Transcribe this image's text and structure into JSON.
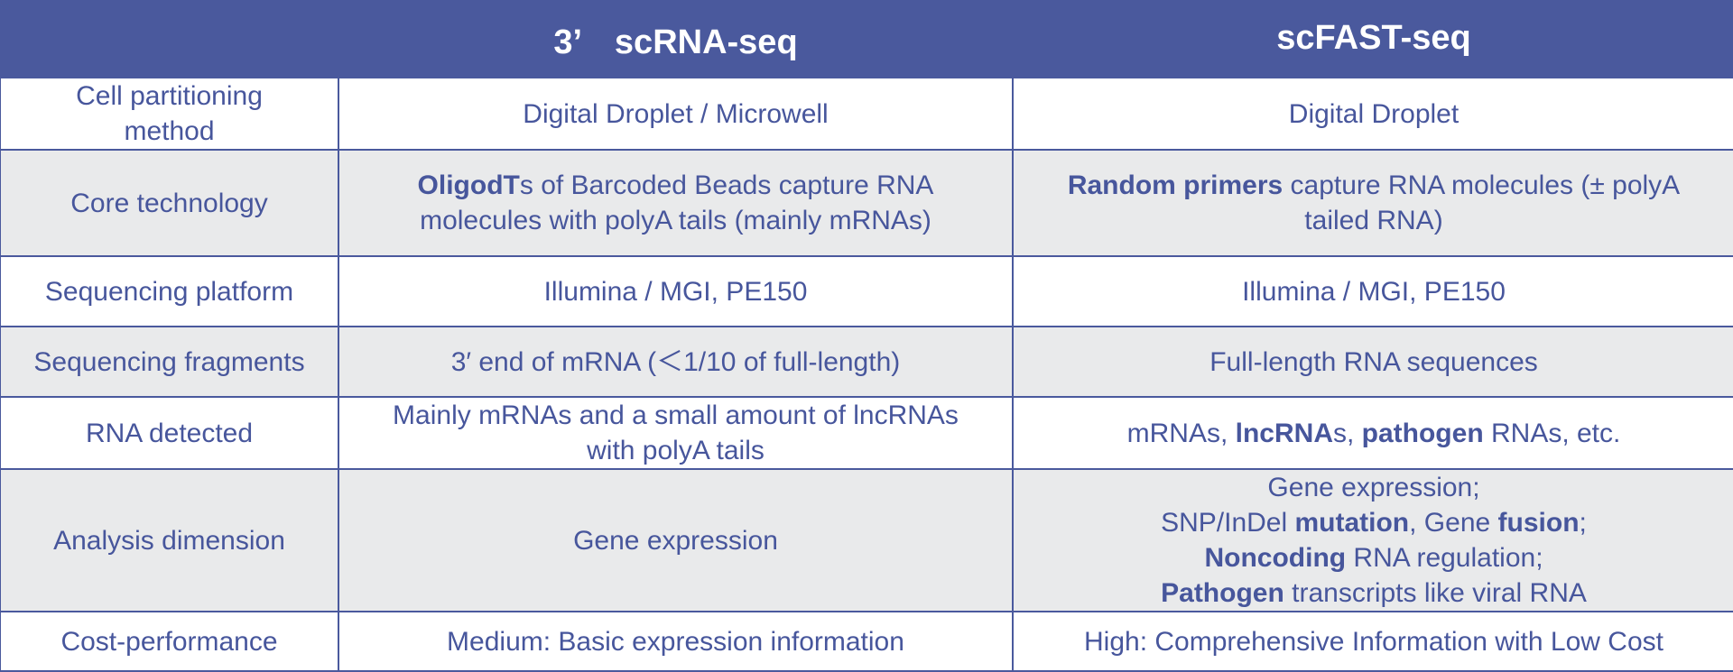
{
  "table": {
    "columns": [
      "",
      "3’　scRNA-seq",
      "scFAST-seq"
    ],
    "rows": [
      {
        "label": [
          "Cell partitioning",
          "method"
        ],
        "a": [
          [
            "Digital Droplet / Microwell"
          ]
        ],
        "b": [
          [
            "Digital Droplet"
          ]
        ]
      },
      {
        "label": [
          "Core technology"
        ],
        "a": [
          [
            {
              "b": "OligodT"
            },
            "s of Barcoded Beads capture RNA"
          ],
          [
            "molecules with polyA tails (mainly mRNAs)"
          ]
        ],
        "b": [
          [
            {
              "b": "Random primers"
            },
            " capture RNA molecules (± polyA"
          ],
          [
            "tailed RNA)"
          ]
        ]
      },
      {
        "label": [
          "Sequencing platform"
        ],
        "a": [
          [
            "Illumina / MGI, PE150"
          ]
        ],
        "b": [
          [
            "Illumina / MGI, PE150"
          ]
        ]
      },
      {
        "label": [
          "Sequencing fragments"
        ],
        "a": [
          [
            "3′ end of mRNA (＜1/10 of full-length)"
          ]
        ],
        "b": [
          [
            "Full-length RNA sequences"
          ]
        ]
      },
      {
        "label": [
          "RNA detected"
        ],
        "a": [
          [
            "Mainly mRNAs and a small amount of lncRNAs"
          ],
          [
            "with polyA tails"
          ]
        ],
        "b": [
          [
            "mRNAs, ",
            {
              "b": "lncRNA"
            },
            "s, ",
            {
              "b": "pathogen"
            },
            " RNAs, etc."
          ]
        ]
      },
      {
        "label": [
          "Analysis dimension"
        ],
        "a": [
          [
            "Gene expression"
          ]
        ],
        "b": [
          [
            "Gene expression;"
          ],
          [
            "SNP/InDel ",
            {
              "b": "mutation"
            },
            ", Gene ",
            {
              "b": "fusion"
            },
            ";"
          ],
          [
            {
              "b": "Noncoding"
            },
            " RNA regulation;"
          ],
          [
            {
              "b": "Pathogen"
            },
            " transcripts like viral RNA"
          ]
        ]
      },
      {
        "label": [
          "Cost-performance"
        ],
        "a": [
          [
            "Medium: Basic expression information"
          ]
        ],
        "b": [
          [
            "High: Comprehensive Information with Low Cost"
          ]
        ]
      }
    ]
  }
}
